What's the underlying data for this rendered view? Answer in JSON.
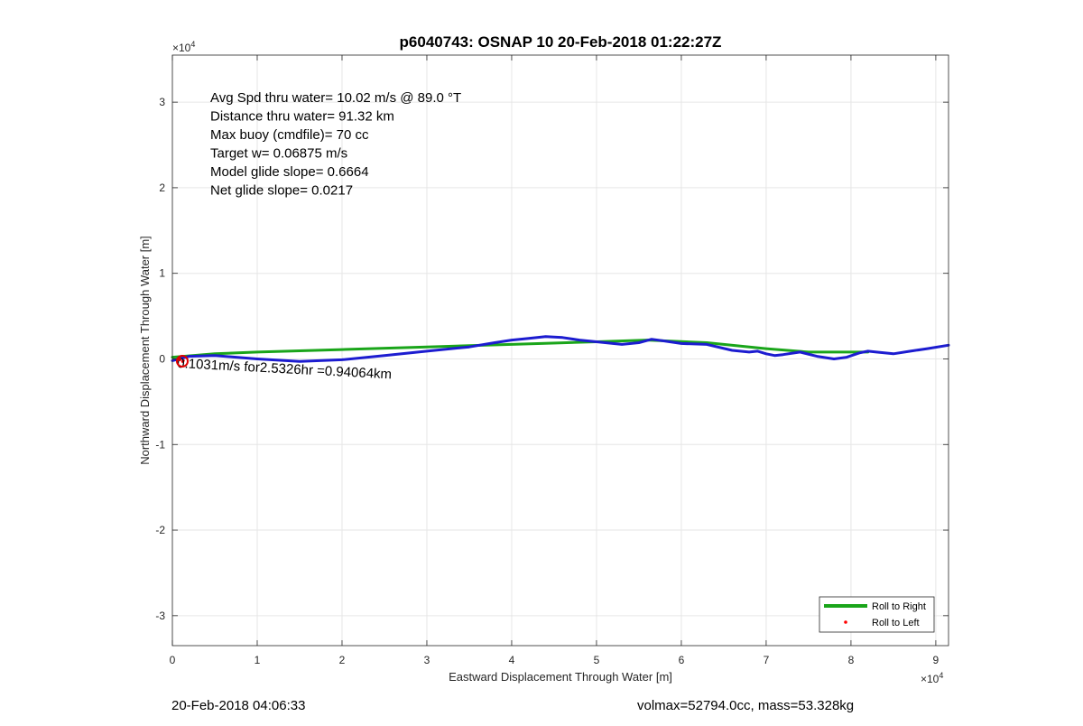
{
  "chart_data": {
    "type": "line",
    "title": "p6040743: OSNAP 10 20-Feb-2018 01:22:27Z",
    "xlabel": "Eastward Displacement Through Water [m]",
    "ylabel": "Northward Displacement Through Water [m]",
    "x_exponent_label": "×10",
    "x_exponent_power": "4",
    "y_exponent_label": "×10",
    "y_exponent_power": "4",
    "xlim": [
      0,
      91500
    ],
    "ylim": [
      -33500,
      35500
    ],
    "x_ticks": [
      0,
      10000,
      20000,
      30000,
      40000,
      50000,
      60000,
      70000,
      80000,
      90000
    ],
    "x_tick_labels": [
      "0",
      "1",
      "2",
      "3",
      "4",
      "5",
      "6",
      "7",
      "8",
      "9"
    ],
    "y_ticks": [
      -30000,
      -20000,
      -10000,
      0,
      10000,
      20000,
      30000
    ],
    "y_tick_labels": [
      "-3",
      "-2",
      "-1",
      "0",
      "1",
      "2",
      "3"
    ],
    "grid": true,
    "legend_position": "bottom-right",
    "annotations": [
      "Avg Spd thru water= 10.02 m/s @  89.0 °T",
      "Distance thru water= 91.32 km",
      "Max buoy (cmdfile)= 70 cc",
      "Target w= 0.06875 m/s",
      "Model glide slope= 0.6664",
      "Net glide slope= 0.0217"
    ],
    "current_label": "0.1031m/s for2.5326hr =0.94064km",
    "series": [
      {
        "name": "Roll to Right",
        "color": "#1aa51a",
        "x": [
          0,
          5000,
          10000,
          20000,
          30000,
          40000,
          50000,
          56000,
          63000,
          70000,
          75000,
          80000,
          82000
        ],
        "y": [
          200,
          600,
          800,
          1100,
          1400,
          1700,
          2000,
          2200,
          1900,
          1200,
          800,
          800,
          800
        ]
      },
      {
        "name": "Roll to Left",
        "color": "#ff0000",
        "x": [
          1200,
          1300
        ],
        "y": [
          -300,
          -200
        ]
      },
      {
        "name": "",
        "color": "#1c1cd0",
        "x": [
          0,
          2000,
          5000,
          10000,
          15000,
          20000,
          25000,
          30000,
          35000,
          38000,
          40000,
          42000,
          44000,
          46000,
          48000,
          50000,
          53000,
          55000,
          56500,
          58000,
          60000,
          63000,
          66000,
          68000,
          69000,
          70000,
          71000,
          72000,
          74000,
          76000,
          78000,
          79500,
          81000,
          82000,
          83000,
          85000,
          87000,
          89000,
          91500
        ],
        "y": [
          -200,
          300,
          400,
          0,
          -300,
          -100,
          400,
          900,
          1400,
          1900,
          2200,
          2400,
          2600,
          2500,
          2200,
          2000,
          1700,
          1900,
          2300,
          2100,
          1800,
          1700,
          1000,
          800,
          900,
          600,
          400,
          500,
          800,
          300,
          0,
          200,
          700,
          900,
          800,
          600,
          900,
          1200,
          1600
        ]
      }
    ]
  },
  "footer": {
    "left": "20-Feb-2018 04:06:33",
    "right": "volmax=52794.0cc, mass=53.328kg"
  }
}
